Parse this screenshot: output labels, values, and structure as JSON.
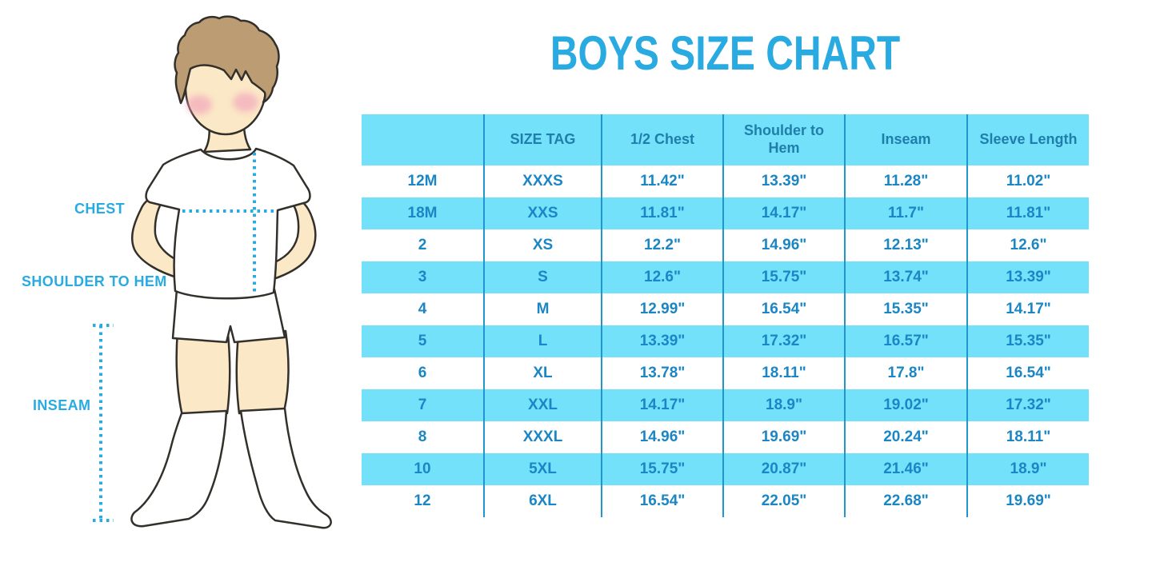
{
  "page": {
    "title": "BOYS SIZE CHART"
  },
  "figure": {
    "chest_label": "CHEST",
    "shoulder_to_hem_label": "SHOULDER TO HEM",
    "inseam_label": "INSEAM"
  },
  "colors": {
    "accent": "#29ABE2",
    "band_cyan": "#73E1FA",
    "header_text": "#1F7EAB",
    "cell_text": "#1B86C5",
    "grid_line": "#2096CE",
    "hair": "#BC9C72",
    "skin": "#FBE8C6",
    "blush": "#F2A3BC",
    "outline": "#33302B"
  },
  "chart_data": {
    "type": "table",
    "title": "BOYS SIZE CHART",
    "columns": [
      "",
      "SIZE TAG",
      "1/2 Chest",
      "Shoulder to Hem",
      "Inseam",
      "Sleeve Length"
    ],
    "rows": [
      [
        "12M",
        "XXXS",
        "11.42\"",
        "13.39\"",
        "11.28\"",
        "11.02\""
      ],
      [
        "18M",
        "XXS",
        "11.81\"",
        "14.17\"",
        "11.7\"",
        "11.81\""
      ],
      [
        "2",
        "XS",
        "12.2\"",
        "14.96\"",
        "12.13\"",
        "12.6\""
      ],
      [
        "3",
        "S",
        "12.6\"",
        "15.75\"",
        "13.74\"",
        "13.39\""
      ],
      [
        "4",
        "M",
        "12.99\"",
        "16.54\"",
        "15.35\"",
        "14.17\""
      ],
      [
        "5",
        "L",
        "13.39\"",
        "17.32\"",
        "16.57\"",
        "15.35\""
      ],
      [
        "6",
        "XL",
        "13.78\"",
        "18.11\"",
        "17.8\"",
        "16.54\""
      ],
      [
        "7",
        "XXL",
        "14.17\"",
        "18.9\"",
        "19.02\"",
        "17.32\""
      ],
      [
        "8",
        "XXXL",
        "14.96\"",
        "19.69\"",
        "20.24\"",
        "18.11\""
      ],
      [
        "10",
        "5XL",
        "15.75\"",
        "20.87\"",
        "21.46\"",
        "18.9\""
      ],
      [
        "12",
        "6XL",
        "16.54\"",
        "22.05\"",
        "22.68\"",
        "19.69\""
      ]
    ],
    "layout": {
      "header_background": "#73E1FA",
      "row_striping": "alternating white/cyan starting with white after cyan header",
      "grid": "vertical separators only, no outer border",
      "units": "inches"
    }
  }
}
